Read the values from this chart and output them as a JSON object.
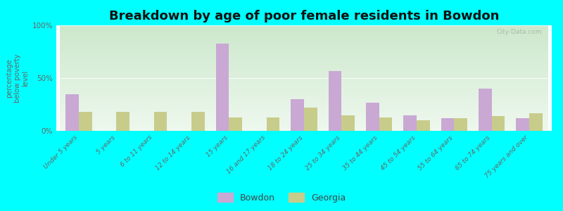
{
  "title": "Breakdown by age of poor female residents in Bowdon",
  "ylabel": "percentage\nbelow poverty\nlevel",
  "categories": [
    "Under 5 years",
    "5 years",
    "6 to 11 years",
    "12 to 14 years",
    "15 years",
    "16 and 17 years",
    "18 to 24 years",
    "25 to 34 years",
    "35 to 44 years",
    "45 to 54 years",
    "55 to 64 years",
    "65 to 74 years",
    "75 years and over"
  ],
  "bowdon_values": [
    35,
    0,
    0,
    0,
    83,
    0,
    30,
    57,
    27,
    15,
    12,
    40,
    12
  ],
  "georgia_values": [
    18,
    18,
    18,
    18,
    13,
    13,
    22,
    15,
    13,
    10,
    12,
    14,
    17
  ],
  "bowdon_color": "#c9a8d4",
  "georgia_color": "#c8cc8a",
  "background_color": "#00ffff",
  "plot_bg_top": "#cce8cc",
  "plot_bg_bottom": "#eef8ee",
  "ylim": [
    0,
    100
  ],
  "yticks": [
    0,
    50,
    100
  ],
  "ytick_labels": [
    "0%",
    "50%",
    "100%"
  ],
  "bar_width": 0.35,
  "title_fontsize": 13,
  "legend_labels": [
    "Bowdon",
    "Georgia"
  ],
  "watermark": "City-Data.com"
}
